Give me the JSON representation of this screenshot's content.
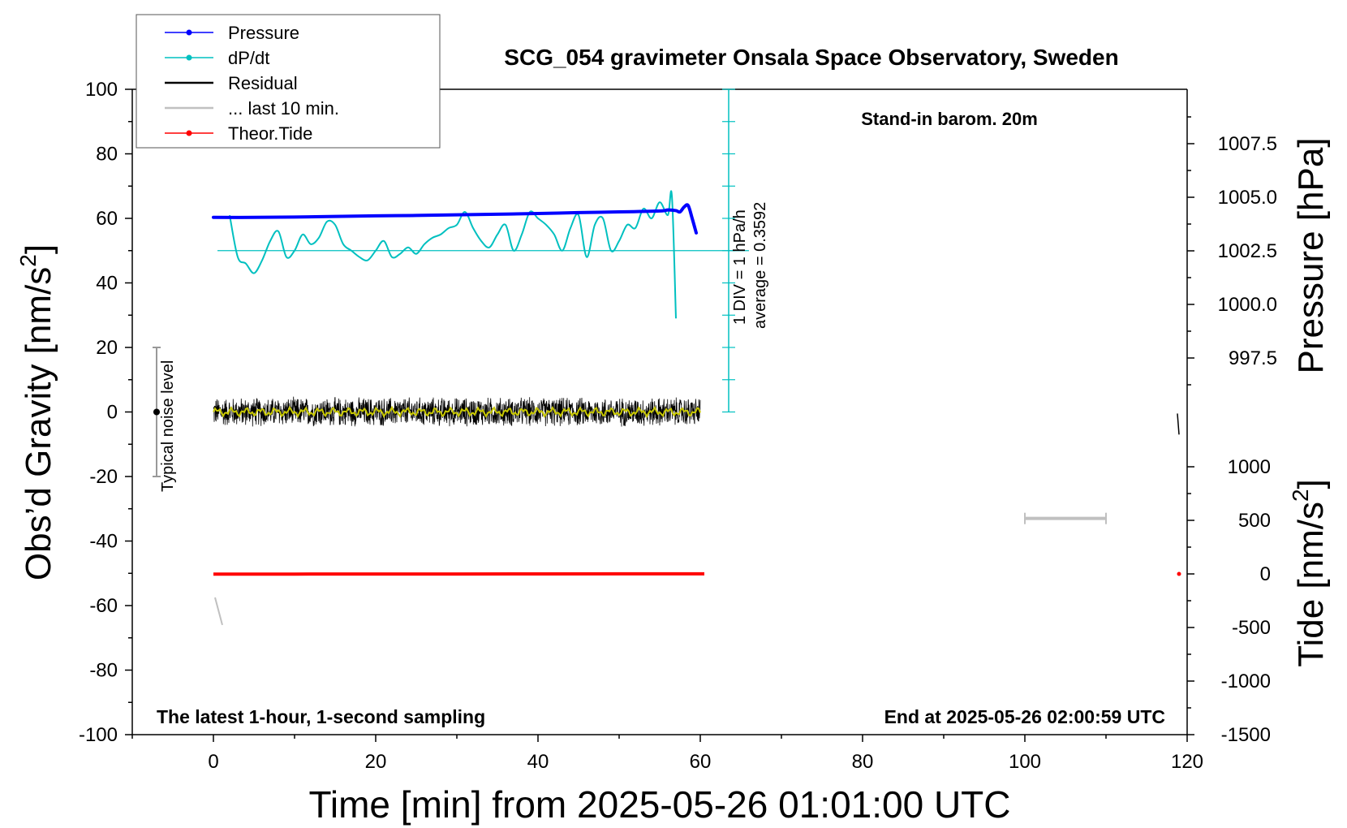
{
  "chart_data": {
    "type": "line",
    "title": "SCG_054 gravimeter Onsala Space Observatory, Sweden",
    "subtitle": "Stand-in barom. 20m",
    "xlabel": "Time [min] from 2025-05-26 01:01:00 UTC",
    "ylabel_left": "Obs’d Gravity [nm/s",
    "ylabel_left_sup": "2",
    "ylabel_left_close": "]",
    "ylabel_right_top": "Pressure [hPa]",
    "ylabel_right_bottom": "Tide [nm/s",
    "ylabel_right_bottom_sup": "2",
    "ylabel_right_bottom_close": "]",
    "xlim": [
      -10,
      120
    ],
    "ylim_left": [
      -100,
      100
    ],
    "x_ticks": [
      "0",
      "20",
      "40",
      "60",
      "80",
      "100",
      "120"
    ],
    "y_ticks_left": [
      "100",
      "80",
      "60",
      "40",
      "20",
      "0",
      "-20",
      "-40",
      "-60",
      "-80",
      "-100"
    ],
    "pressure_axis": {
      "ticks": [
        "1007.5",
        "1005.0",
        "1002.5",
        "1000.0",
        "997.5"
      ]
    },
    "tide_axis": {
      "ticks": [
        "1000",
        "500",
        "0",
        "-500",
        "-1000",
        "-1500"
      ]
    },
    "legend_position": "top-left",
    "legend": [
      {
        "label": "Pressure",
        "color": "#0000ff",
        "marker": true
      },
      {
        "label": "dP/dt",
        "color": "#00c0c0",
        "marker": true
      },
      {
        "label": "Residual",
        "color": "#000000",
        "marker": false
      },
      {
        "label": "... last 10 min.",
        "color": "#c0c0c0",
        "marker": false
      },
      {
        "label": "Theor.Tide",
        "color": "#ff0000",
        "marker": true
      }
    ],
    "annotations": {
      "footer_left": "The latest 1-hour, 1-second sampling",
      "footer_right": "End at 2025-05-26 02:00:59 UTC",
      "dpdt_scale_line1": "1 DIV = 1 hPa/h",
      "dpdt_scale_line2": "average = 0.3592",
      "noise_label": "Typical noise level"
    },
    "noise_bar": {
      "x": -7,
      "y_center": 0,
      "y_range": [
        -20,
        20
      ]
    },
    "series": [
      {
        "name": "Pressure",
        "axis": "gravity_equivalent",
        "color": "#0000ff",
        "x": [
          0,
          5,
          10,
          15,
          20,
          25,
          30,
          35,
          40,
          45,
          50,
          55,
          56,
          57,
          57.5,
          58,
          58.5,
          59,
          59.5
        ],
        "y": [
          60.3,
          60.3,
          60.4,
          60.6,
          60.8,
          60.9,
          61.1,
          61.3,
          61.5,
          61.8,
          62.0,
          62.3,
          62.6,
          62.4,
          62.0,
          63.5,
          64.0,
          60.0,
          55.5
        ]
      },
      {
        "name": "dP/dt",
        "axis": "gravity_equivalent",
        "color": "#00c0c0",
        "x": [
          2,
          3,
          4,
          5,
          6,
          7,
          8,
          9,
          10,
          11,
          12,
          13,
          14,
          15,
          16,
          17,
          18,
          19,
          20,
          21,
          22,
          23,
          24,
          25,
          26,
          27,
          28,
          29,
          30,
          31,
          32,
          33,
          34,
          35,
          36,
          37,
          38,
          39,
          40,
          41,
          42,
          43,
          44,
          45,
          46,
          47,
          48,
          49,
          50,
          51,
          52,
          53,
          54,
          55,
          56,
          56.5,
          57
        ],
        "y": [
          61,
          48,
          46,
          43,
          47,
          53,
          56,
          48,
          50,
          55,
          52,
          54,
          59,
          58,
          52,
          50,
          48,
          47,
          50,
          53,
          48,
          49,
          51,
          49,
          52,
          54,
          55,
          57,
          58,
          62,
          57,
          53,
          51,
          55,
          58,
          50,
          55,
          62,
          60,
          58,
          55,
          50,
          57,
          61,
          48,
          58,
          60,
          50,
          53,
          58,
          57,
          63,
          60,
          65,
          61,
          67,
          29
        ]
      },
      {
        "name": "Residual",
        "axis": "gravity",
        "color": "#000000",
        "x_range": [
          0,
          60
        ],
        "amplitude": 4.5,
        "smoothed_color": "#c8c800"
      },
      {
        "name": "... last 10 min.",
        "axis": "gravity",
        "color": "#c0c0c0",
        "x": [
          0.2,
          1.1
        ],
        "y": [
          -57.5,
          -66
        ]
      },
      {
        "name": "Theor.Tide",
        "axis": "tide",
        "color": "#ff0000",
        "x": [
          0,
          10,
          20,
          30,
          40,
          50,
          60.5
        ],
        "y": [
          -2,
          -1.5,
          -1,
          -0.5,
          0,
          0.5,
          1
        ]
      }
    ],
    "right_markers": {
      "residual_last_value": {
        "x": 118.8,
        "y": [
          -0.5,
          -7
        ]
      },
      "tide_last_value": {
        "x": 119,
        "y": 0
      },
      "last10_scale_bar": {
        "x": [
          100,
          110
        ],
        "y": -33
      }
    }
  }
}
